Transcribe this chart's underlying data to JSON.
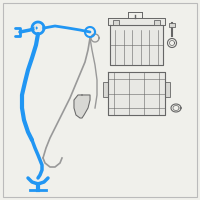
{
  "bg_color": "#f0f0eb",
  "border_color": "#bbbbbb",
  "cable_color": "#2196F3",
  "wire_color": "#999999",
  "edge_color": "#666666",
  "fill_light": "#e8e8e4",
  "fill_mid": "#d8d8d4"
}
